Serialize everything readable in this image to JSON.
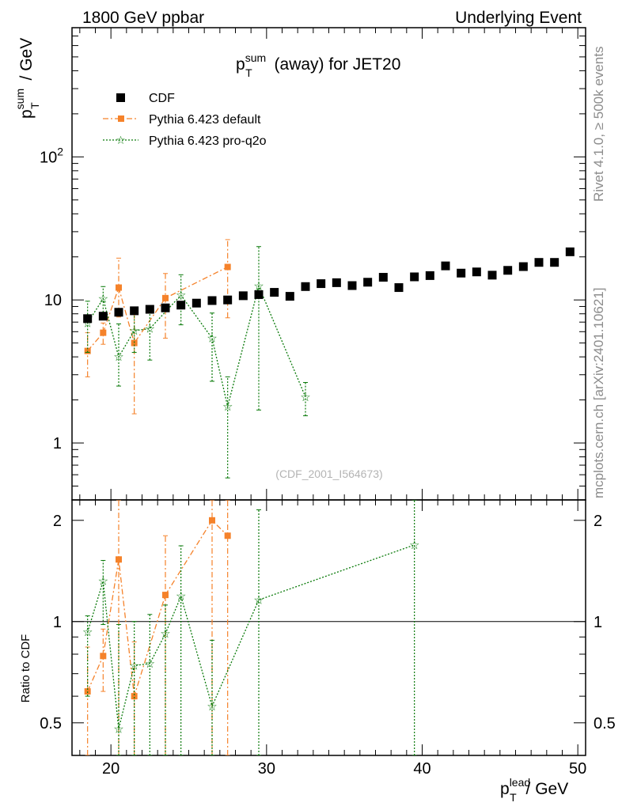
{
  "header": {
    "left": "1800 GeV ppbar",
    "right": "Underlying Event"
  },
  "side": {
    "rivet": "Rivet 4.1.0, ≥ 500k events",
    "mcplots": "mcplots.cern.ch [arXiv:2401.10621]"
  },
  "watermark": "(CDF_2001_I564673)",
  "chart_data": {
    "type": "scatter",
    "title": {
      "main": "p",
      "sup": "sum",
      "sub": "T",
      "rest": " (away) for JET20"
    },
    "ylabel": {
      "main": "p",
      "sup": "sum",
      "sub": "T",
      "rest": " / GeV"
    },
    "xlabel": {
      "main": "p",
      "sup": "lead",
      "sub": "T",
      "rest": " / GeV"
    },
    "ratio_ylabel": "Ratio to CDF",
    "xlim": [
      17.5,
      50.5
    ],
    "ylim": [
      0.4,
      800
    ],
    "yscale": "log",
    "ratio_ylim": [
      0.4,
      2.3
    ],
    "xticks": [
      "20",
      "30",
      "40",
      "50"
    ],
    "yticks": [
      "1",
      "10",
      "10^2"
    ],
    "ratio_yticks": [
      "0.5",
      "1",
      "2"
    ],
    "legend": [
      "CDF",
      "Pythia 6.423 default",
      "Pythia 6.423 pro-q2o"
    ],
    "colors": {
      "CDF": "#000000",
      "default": "#f5822a",
      "proq2o": "#0a7a0a"
    },
    "cdf": {
      "x": [
        18.5,
        19.5,
        20.5,
        21.5,
        22.5,
        23.5,
        24.5,
        25.5,
        26.5,
        27.5,
        28.5,
        29.5,
        30.5,
        31.5,
        32.5,
        33.5,
        34.5,
        35.5,
        36.5,
        37.5,
        38.5,
        39.5,
        40.5,
        41.5,
        42.5,
        43.5,
        44.5,
        45.5,
        46.5,
        47.5,
        48.5,
        49.5
      ],
      "y": [
        7.4,
        7.7,
        8.2,
        8.4,
        8.6,
        8.8,
        9.2,
        9.5,
        9.9,
        10.0,
        10.7,
        10.9,
        11.3,
        10.6,
        12.4,
        13.0,
        13.2,
        12.6,
        13.3,
        14.4,
        12.2,
        14.5,
        14.8,
        17.3,
        15.4,
        15.7,
        14.9,
        16.1,
        17.1,
        18.3,
        18.3,
        21.7
      ]
    },
    "series": [
      {
        "name": "Pythia 6.423 default",
        "x": [
          18.5,
          19.5,
          20.5,
          21.5,
          23.5,
          27.5
        ],
        "y": [
          4.4,
          5.9,
          12.2,
          5.0,
          10.3,
          17.0
        ],
        "err_lo": [
          2.9,
          4.9,
          7.6,
          1.6,
          5.4,
          7.5
        ],
        "err_hi": [
          5.9,
          6.9,
          19.6,
          8.4,
          15.3,
          26.4
        ],
        "ratio_x": [
          18.5,
          19.5,
          20.5,
          21.5,
          23.5,
          26.5,
          27.5
        ],
        "ratio_y": [
          0.62,
          0.79,
          1.53,
          0.6,
          1.2,
          2.0,
          1.8
        ],
        "ratio_err_lo": [
          0.4,
          0.62,
          0.4,
          0.4,
          0.4,
          0.4,
          0.4
        ],
        "ratio_err_hi": [
          0.84,
          0.95,
          2.3,
          0.87,
          1.8,
          2.3,
          2.3
        ]
      },
      {
        "name": "Pythia 6.423 pro-q2o",
        "x": [
          18.5,
          19.5,
          20.5,
          21.5,
          22.5,
          24.5,
          26.5,
          27.5,
          29.5,
          32.5
        ],
        "y": [
          6.9,
          10.2,
          4.0,
          6.1,
          6.3,
          10.8,
          5.4,
          1.8,
          12.5,
          2.1
        ],
        "err_lo": [
          4.3,
          7.8,
          2.5,
          4.3,
          3.8,
          6.7,
          2.7,
          0.57,
          1.7,
          1.55
        ],
        "err_hi": [
          9.8,
          12.4,
          6.8,
          8.0,
          8.9,
          15.0,
          8.1,
          2.9,
          23.6,
          2.65
        ],
        "ratio_x": [
          18.5,
          19.5,
          20.5,
          21.5,
          22.5,
          23.5,
          24.5,
          26.5,
          29.5,
          39.5
        ],
        "ratio_y": [
          0.93,
          1.32,
          0.48,
          0.74,
          0.75,
          0.92,
          1.19,
          0.56,
          1.16,
          1.69
        ],
        "ratio_err_lo": [
          0.6,
          0.98,
          0.4,
          0.4,
          0.4,
          0.4,
          0.4,
          0.4,
          0.4,
          0.4
        ],
        "ratio_err_hi": [
          1.04,
          1.52,
          0.98,
          1.0,
          1.05,
          1.12,
          1.68,
          0.88,
          2.15,
          2.3
        ]
      }
    ]
  }
}
